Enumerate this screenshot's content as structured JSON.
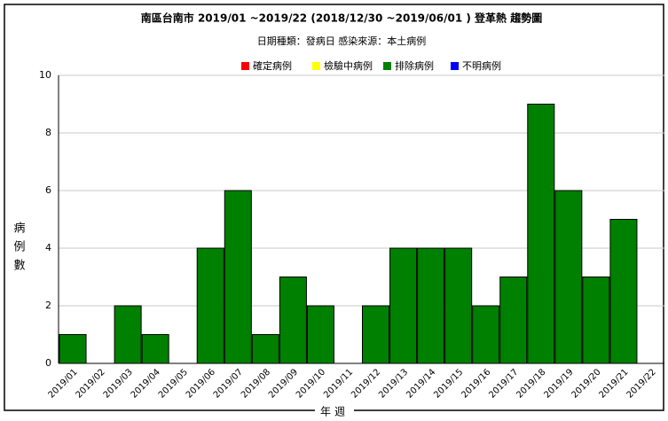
{
  "chart_data": {
    "type": "stacked-bar",
    "title": "南區台南市 2019/01 ~2019/22 (2018/12/30 ~2019/06/01 ) 登革熱 趨勢圖",
    "subtitle": "日期種類：發病日   感染來源：本土病例",
    "y_label": "病例數",
    "x_label": "年週",
    "categories": [
      "2019/01",
      "2019/02",
      "2019/03",
      "2019/04",
      "2019/05",
      "2019/06",
      "2019/07",
      "2019/08",
      "2019/09",
      "2019/10",
      "2019/11",
      "2019/12",
      "2019/13",
      "2019/14",
      "2019/15",
      "2019/16",
      "2019/17",
      "2019/18",
      "2019/19",
      "2019/20",
      "2019/21",
      "2019/22"
    ],
    "series": [
      {
        "name": "確定病例",
        "color": "#ff0000",
        "values": [
          0,
          0,
          0,
          0,
          0,
          0,
          0,
          0,
          0,
          0,
          0,
          0,
          0,
          0,
          0,
          0,
          0,
          0,
          0,
          0,
          0,
          0
        ]
      },
      {
        "name": "檢驗中病例",
        "color": "#ffff00",
        "values": [
          0,
          0,
          0,
          0,
          0,
          0,
          0,
          0,
          0,
          0,
          0,
          0,
          0,
          0,
          0,
          0,
          0,
          0,
          0,
          0,
          0,
          0
        ]
      },
      {
        "name": "排除病例",
        "color": "#008000",
        "values": [
          1,
          0,
          2,
          1,
          0,
          4,
          6,
          1,
          3,
          2,
          0,
          2,
          4,
          4,
          4,
          2,
          3,
          9,
          6,
          3,
          5,
          0
        ]
      },
      {
        "name": "不明病例",
        "color": "#0000ff",
        "values": [
          0,
          0,
          0,
          0,
          0,
          0,
          0,
          0,
          0,
          0,
          0,
          0,
          0,
          0,
          0,
          0,
          0,
          0,
          0,
          0,
          0,
          0
        ]
      }
    ],
    "ylim": [
      0,
      10
    ],
    "yticks": [
      0,
      2,
      4,
      6,
      8,
      10
    ],
    "grid": true
  }
}
